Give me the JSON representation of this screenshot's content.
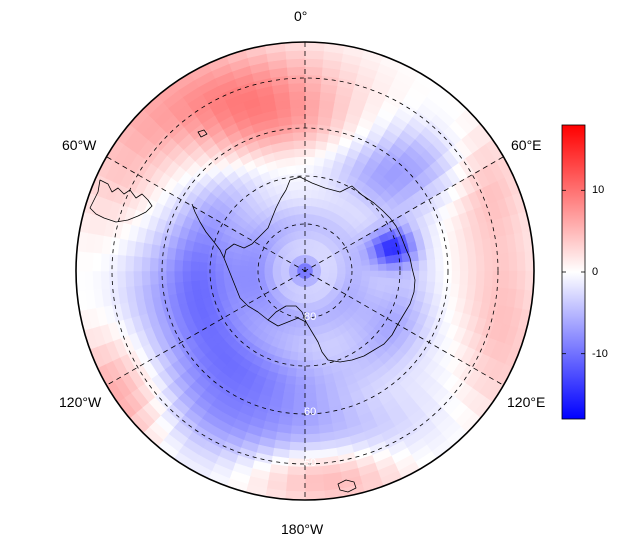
{
  "map": {
    "projection": "south-polar-stereographic",
    "central_longitude": 0,
    "orientation": "0° at top, 180°W at bottom, east to the right",
    "longitude_labels": [
      {
        "id": "lon-0",
        "text": "0°"
      },
      {
        "id": "lon-60e",
        "text": "60°E"
      },
      {
        "id": "lon-60w",
        "text": "60°W"
      },
      {
        "id": "lon-120e",
        "text": "120°E"
      },
      {
        "id": "lon-120w",
        "text": "120°W"
      },
      {
        "id": "lon-180w",
        "text": "180°W"
      }
    ],
    "latitude_labels": [
      {
        "id": "lat-80",
        "text": "80"
      },
      {
        "id": "lat-60",
        "text": "60"
      },
      {
        "id": "lat-50",
        "text": "50"
      }
    ],
    "colormap": {
      "low": "#0000ff",
      "mid": "#ffffff",
      "high": "#ff0000"
    }
  },
  "colorbar": {
    "range": [
      -18,
      18
    ],
    "ticks": [
      {
        "value": 10,
        "label": "10"
      },
      {
        "value": 0,
        "label": "0"
      },
      {
        "value": -10,
        "label": "-10"
      }
    ]
  }
}
